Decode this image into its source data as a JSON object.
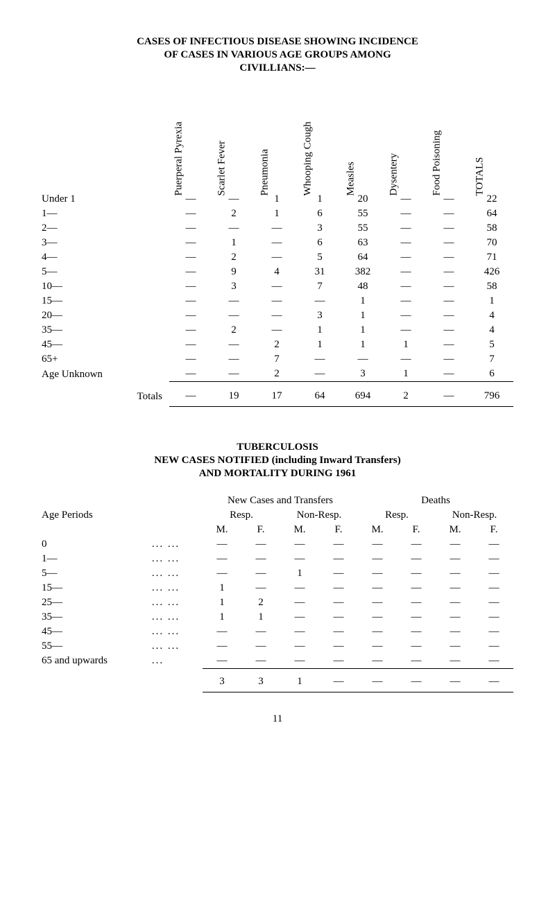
{
  "title": {
    "l1": "CASES OF INFECTIOUS DISEASE SHOWING INCIDENCE",
    "l2": "OF CASES IN VARIOUS AGE GROUPS AMONG",
    "l3": "CIVILLIANS:—"
  },
  "table1": {
    "headers": [
      "Puerperal Pyrexia",
      "Scarlet Fever",
      "Pneumonia",
      "Whooping Cough",
      "Measles",
      "Dysentery",
      "Food Poisoning",
      "TOTALS"
    ],
    "rows": [
      {
        "label": "Under 1",
        "v": [
          "—",
          "—",
          "1",
          "1",
          "20",
          "—",
          "—",
          "22"
        ]
      },
      {
        "label": "1—",
        "v": [
          "—",
          "2",
          "1",
          "6",
          "55",
          "—",
          "—",
          "64"
        ]
      },
      {
        "label": "2—",
        "v": [
          "—",
          "—",
          "—",
          "3",
          "55",
          "—",
          "—",
          "58"
        ]
      },
      {
        "label": "3—",
        "v": [
          "—",
          "1",
          "—",
          "6",
          "63",
          "—",
          "—",
          "70"
        ]
      },
      {
        "label": "4—",
        "v": [
          "—",
          "2",
          "—",
          "5",
          "64",
          "—",
          "—",
          "71"
        ]
      },
      {
        "label": "5—",
        "v": [
          "—",
          "9",
          "4",
          "31",
          "382",
          "—",
          "—",
          "426"
        ]
      },
      {
        "label": "10—",
        "v": [
          "—",
          "3",
          "—",
          "7",
          "48",
          "—",
          "—",
          "58"
        ]
      },
      {
        "label": "15—",
        "v": [
          "—",
          "—",
          "—",
          "—",
          "1",
          "—",
          "—",
          "1"
        ]
      },
      {
        "label": "20—",
        "v": [
          "—",
          "—",
          "—",
          "3",
          "1",
          "—",
          "—",
          "4"
        ]
      },
      {
        "label": "35—",
        "v": [
          "—",
          "2",
          "—",
          "1",
          "1",
          "—",
          "—",
          "4"
        ]
      },
      {
        "label": "45—",
        "v": [
          "—",
          "—",
          "2",
          "1",
          "1",
          "1",
          "—",
          "5"
        ]
      },
      {
        "label": "65+",
        "v": [
          "—",
          "—",
          "7",
          "—",
          "—",
          "—",
          "—",
          "7"
        ]
      },
      {
        "label": "Age Unknown",
        "v": [
          "—",
          "—",
          "2",
          "—",
          "3",
          "1",
          "—",
          "6"
        ]
      }
    ],
    "totals": {
      "label": "Totals",
      "v": [
        "—",
        "19",
        "17",
        "64",
        "694",
        "2",
        "—",
        "796"
      ]
    }
  },
  "section2": {
    "h1": "TUBERCULOSIS",
    "h2": "NEW CASES NOTIFIED (including Inward Transfers)",
    "h3": "AND MORTALITY DURING 1961",
    "top_left": "New Cases and Transfers",
    "top_right": "Deaths",
    "age_label": "Age Periods",
    "resp": "Resp.",
    "nonresp": "Non-Resp.",
    "M": "M.",
    "F": "F.",
    "rows": [
      {
        "label": "0",
        "d": "... ...",
        "v": [
          "—",
          "—",
          "—",
          "—",
          "—",
          "—",
          "—",
          "—"
        ]
      },
      {
        "label": "1—",
        "d": "... ...",
        "v": [
          "—",
          "—",
          "—",
          "—",
          "—",
          "—",
          "—",
          "—"
        ]
      },
      {
        "label": "5—",
        "d": "... ...",
        "v": [
          "—",
          "—",
          "1",
          "—",
          "—",
          "—",
          "—",
          "—"
        ]
      },
      {
        "label": "15—",
        "d": "... ...",
        "v": [
          "1",
          "—",
          "—",
          "—",
          "—",
          "—",
          "—",
          "—"
        ]
      },
      {
        "label": "25—",
        "d": "... ...",
        "v": [
          "1",
          "2",
          "—",
          "—",
          "—",
          "—",
          "—",
          "—"
        ]
      },
      {
        "label": "35—",
        "d": "... ...",
        "v": [
          "1",
          "1",
          "—",
          "—",
          "—",
          "—",
          "—",
          "—"
        ]
      },
      {
        "label": "45—",
        "d": "... ...",
        "v": [
          "—",
          "—",
          "—",
          "—",
          "—",
          "—",
          "—",
          "—"
        ]
      },
      {
        "label": "55—",
        "d": "... ...",
        "v": [
          "—",
          "—",
          "—",
          "—",
          "—",
          "—",
          "—",
          "—"
        ]
      },
      {
        "label": "65 and upwards",
        "d": "...",
        "v": [
          "—",
          "—",
          "—",
          "—",
          "—",
          "—",
          "—",
          "—"
        ]
      }
    ],
    "sum": [
      "3",
      "3",
      "1",
      "—",
      "—",
      "—",
      "—",
      "—"
    ]
  },
  "page": "11"
}
